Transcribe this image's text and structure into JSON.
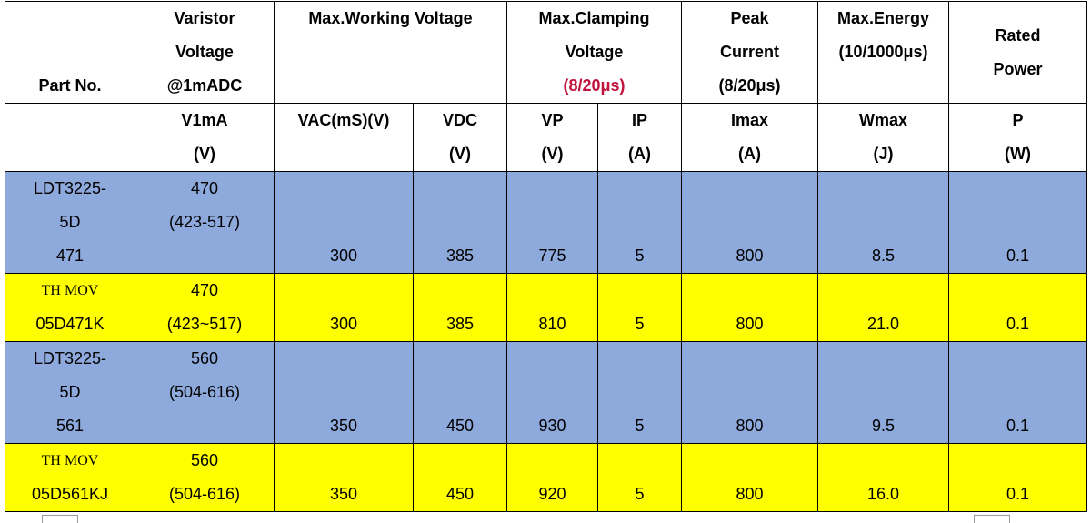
{
  "header": {
    "part_no": "Part No.",
    "varistor": [
      "Varistor",
      "Voltage",
      "@1mADC"
    ],
    "max_working": "Max.Working Voltage",
    "max_clamping": [
      "Max.Clamping",
      "Voltage",
      "(8/20μs)"
    ],
    "peak_current": [
      "Peak",
      "Current",
      "(8/20μs)"
    ],
    "max_energy": [
      "Max.Energy",
      "(10/1000μs)"
    ],
    "rated_power": [
      "Rated",
      "Power"
    ]
  },
  "subheader": {
    "v1ma": [
      "V1mA",
      "(V)"
    ],
    "vac": "VAC(mS)(V)",
    "vdc": [
      "VDC",
      "(V)"
    ],
    "vp": [
      "VP",
      "(V)"
    ],
    "ip": [
      "IP",
      "(A)"
    ],
    "imax": [
      "Imax",
      "(A)"
    ],
    "wmax": [
      "Wmax",
      "(J)"
    ],
    "p": [
      "P",
      "(W)"
    ]
  },
  "rows": [
    {
      "part": [
        "LDT3225-",
        "5D",
        "471"
      ],
      "v1ma": [
        "470",
        "(423-517)"
      ],
      "vac": "300",
      "vdc": "385",
      "vp": "775",
      "ip": "5",
      "imax": "800",
      "wmax": "8.5",
      "p": "0.1"
    },
    {
      "part": [
        "TH MOV",
        "05D471K"
      ],
      "v1ma": [
        "470",
        "(423~517)"
      ],
      "vac": "300",
      "vdc": "385",
      "vp": "810",
      "ip": "5",
      "imax": "800",
      "wmax": "21.0",
      "p": "0.1"
    },
    {
      "part": [
        "LDT3225-",
        "5D",
        "561"
      ],
      "v1ma": [
        "560",
        "(504-616)"
      ],
      "vac": "350",
      "vdc": "450",
      "vp": "930",
      "ip": "5",
      "imax": "800",
      "wmax": "9.5",
      "p": "0.1"
    },
    {
      "part": [
        "TH MOV",
        "05D561KJ"
      ],
      "v1ma": [
        "560",
        "(504-616)"
      ],
      "vac": "350",
      "vdc": "450",
      "vp": "920",
      "ip": "5",
      "imax": "800",
      "wmax": "16.0",
      "p": "0.1"
    }
  ],
  "colors": {
    "ldt_row": "#8ea9db",
    "th_row": "#ffff00",
    "pulse_text": "#c0143c"
  }
}
